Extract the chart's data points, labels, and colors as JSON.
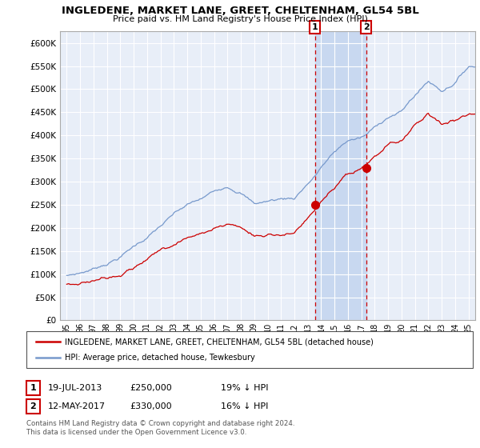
{
  "title": "INGLEDENE, MARKET LANE, GREET, CHELTENHAM, GL54 5BL",
  "subtitle": "Price paid vs. HM Land Registry's House Price Index (HPI)",
  "ylabel_ticks": [
    0,
    50000,
    100000,
    150000,
    200000,
    250000,
    300000,
    350000,
    400000,
    450000,
    500000,
    550000,
    600000
  ],
  "ylabel_labels": [
    "£0",
    "£50K",
    "£100K",
    "£150K",
    "£200K",
    "£250K",
    "£300K",
    "£350K",
    "£400K",
    "£450K",
    "£500K",
    "£550K",
    "£600K"
  ],
  "ylim": [
    0,
    625000
  ],
  "xlim_start": 1994.5,
  "xlim_end": 2025.5,
  "sale1_x": 2013.54,
  "sale1_y": 250000,
  "sale2_x": 2017.36,
  "sale2_y": 330000,
  "legend_line1": "INGLEDENE, MARKET LANE, GREET, CHELTENHAM, GL54 5BL (detached house)",
  "legend_line2": "HPI: Average price, detached house, Tewkesbury",
  "footer": "Contains HM Land Registry data © Crown copyright and database right 2024.\nThis data is licensed under the Open Government Licence v3.0.",
  "red_color": "#cc0000",
  "blue_color": "#7799cc",
  "plot_bg": "#e8eef8",
  "shaded_color": "#c8d8f0"
}
